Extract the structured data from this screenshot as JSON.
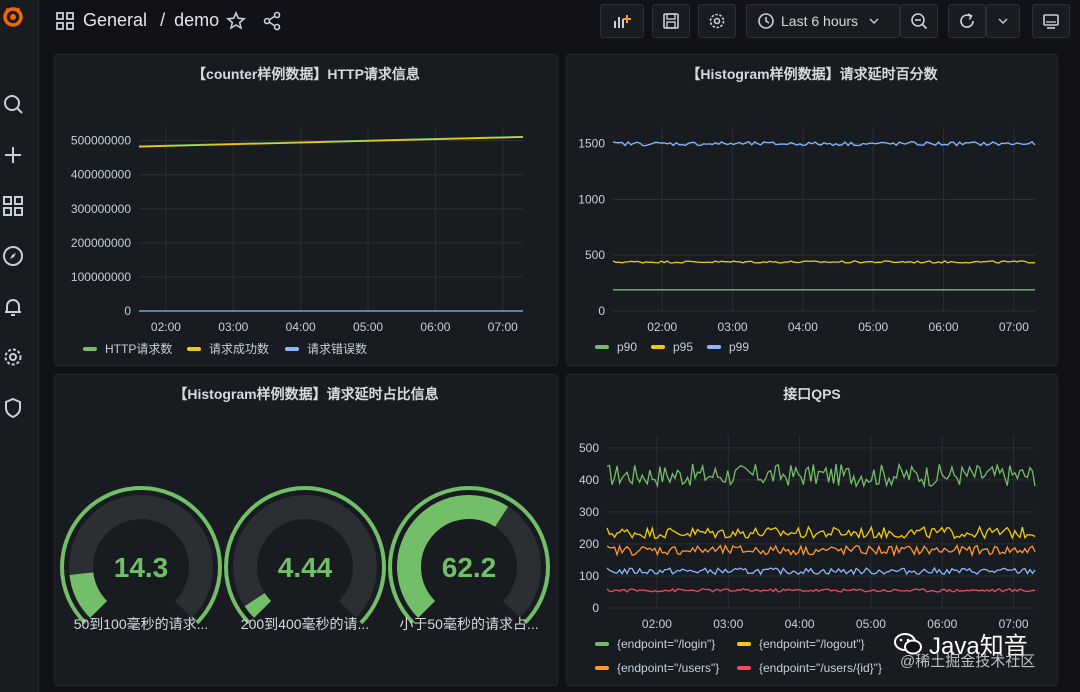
{
  "header": {
    "breadcrumb_folder": "General",
    "breadcrumb_separator": "/",
    "breadcrumb_dashboard": "demo",
    "time_range": "Last 6 hours"
  },
  "sidebar": {
    "items": [
      {
        "icon": "search-icon"
      },
      {
        "icon": "plus-icon"
      },
      {
        "icon": "dashboards-icon"
      },
      {
        "icon": "explore-icon"
      },
      {
        "icon": "bell-icon"
      },
      {
        "icon": "gear-icon"
      },
      {
        "icon": "shield-icon"
      }
    ]
  },
  "colors": {
    "green": "#73bf69",
    "yellow": "#f2cc0c",
    "blue": "#8ab8ff",
    "orange": "#ff9830",
    "red": "#f2495c",
    "logo": "#f46800"
  },
  "chart_data": [
    {
      "type": "line",
      "title": "【counter样例数据】HTTP请求信息",
      "x_ticks": [
        "02:00",
        "03:00",
        "04:00",
        "05:00",
        "06:00",
        "07:00"
      ],
      "y_ticks": [
        "0",
        "100000000",
        "200000000",
        "300000000",
        "400000000",
        "500000000"
      ],
      "ylim": [
        0,
        540000000
      ],
      "xlim": [
        1.6,
        7.3
      ],
      "x": [
        1.6,
        7.3
      ],
      "series": [
        {
          "name": "HTTP请求数",
          "color": "#73bf69",
          "values": [
            484000000,
            512000000
          ]
        },
        {
          "name": "请求成功数",
          "color": "#f2cc0c",
          "values": [
            482000000,
            510000000
          ]
        },
        {
          "name": "请求错误数",
          "color": "#8ab8ff",
          "values": [
            0,
            0
          ]
        }
      ]
    },
    {
      "type": "line",
      "title": "【Histogram样例数据】请求延时百分数",
      "x_ticks": [
        "02:00",
        "03:00",
        "04:00",
        "05:00",
        "06:00",
        "07:00"
      ],
      "y_ticks": [
        "0",
        "500",
        "1000",
        "1500"
      ],
      "ylim": [
        0,
        1650
      ],
      "xlim": [
        1.3,
        7.3
      ],
      "series": [
        {
          "name": "p90",
          "color": "#73bf69",
          "base": 190,
          "noise": 0
        },
        {
          "name": "p95",
          "color": "#f2cc0c",
          "base": 440,
          "noise": 10
        },
        {
          "name": "p99",
          "color": "#8ab8ff",
          "base": 1500,
          "noise": 18
        }
      ]
    },
    {
      "type": "gauge",
      "title": "【Histogram样例数据】请求延时占比信息",
      "max": 100,
      "gauges": [
        {
          "label": "50到100毫秒的请求...",
          "value": "14.3",
          "fraction": 0.143
        },
        {
          "label": "200到400毫秒的请...",
          "value": "4.44",
          "fraction": 0.0444
        },
        {
          "label": "小于50毫秒的请求占...",
          "value": "62.2",
          "fraction": 0.622
        }
      ]
    },
    {
      "type": "line",
      "title": "接口QPS",
      "x_ticks": [
        "02:00",
        "03:00",
        "04:00",
        "05:00",
        "06:00",
        "07:00"
      ],
      "y_ticks": [
        "0",
        "100",
        "200",
        "300",
        "400",
        "500"
      ],
      "ylim": [
        0,
        540
      ],
      "xlim": [
        1.3,
        7.3
      ],
      "series": [
        {
          "name": "{endpoint=\"/login\"}",
          "color": "#73bf69",
          "base": 415,
          "noise": 35
        },
        {
          "name": "{endpoint=\"/logout\"}",
          "color": "#f2cc0c",
          "base": 235,
          "noise": 18
        },
        {
          "name": "{endpoint=\"/users\"}",
          "color": "#ff9830",
          "base": 180,
          "noise": 15
        },
        {
          "name": "{endpoint=\"/users/{id}\"}",
          "color": "#f2495c",
          "base": 55,
          "noise": 5
        },
        {
          "name": "",
          "color": "#8ab8ff",
          "base": 115,
          "noise": 10
        }
      ]
    }
  ],
  "watermark": {
    "text": "Java知音",
    "subtext": "@稀土掘金技术社区"
  }
}
